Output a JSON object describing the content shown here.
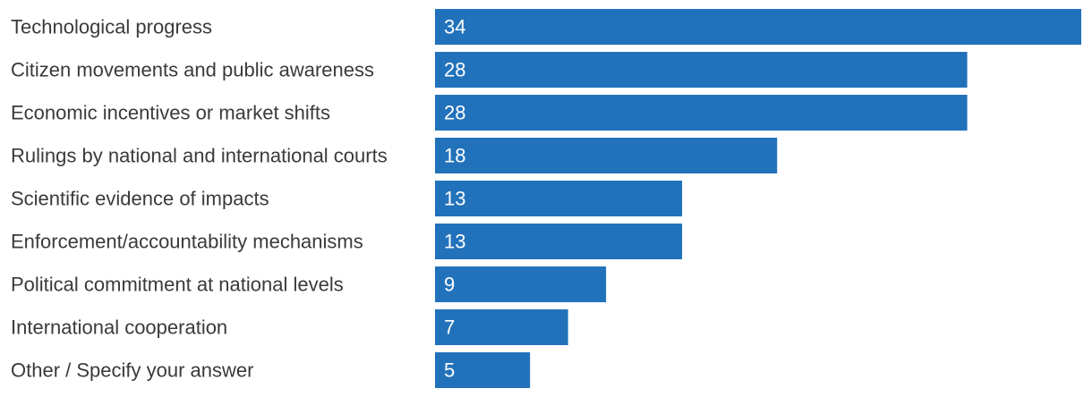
{
  "chart_data": {
    "type": "bar",
    "orientation": "horizontal",
    "categories": [
      "Technological progress",
      "Citizen movements and public awareness",
      "Economic incentives or market shifts",
      "Rulings by national and international courts",
      "Scientific evidence of impacts",
      "Enforcement/accountability mechanisms",
      "Political commitment at national levels",
      "International cooperation",
      "Other / Specify your answer"
    ],
    "values": [
      34,
      28,
      28,
      18,
      13,
      13,
      9,
      7,
      5
    ],
    "value_labels": [
      "34",
      "28",
      "28",
      "18",
      "13",
      "13",
      "9",
      "7",
      "5"
    ],
    "title": "",
    "xlabel": "",
    "ylabel": "",
    "xlim": [
      0,
      34
    ],
    "grid": false,
    "legend": "none",
    "bar_color": "#2272bb",
    "label_color": "#3a3a3a",
    "value_label_color": "#ffffff"
  }
}
